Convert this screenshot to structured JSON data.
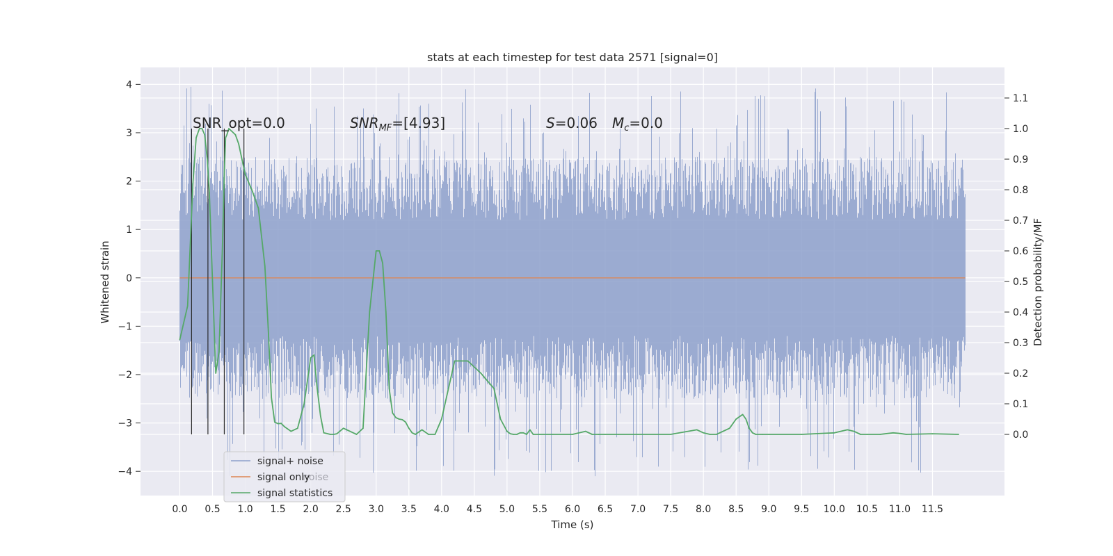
{
  "chart_data": {
    "type": "line",
    "title": "stats at each timestep for test data 2571 [signal=0]",
    "xlabel": "Time (s)",
    "ylabel_left": "Whitened strain",
    "ylabel_right": "Detection probability/MF",
    "xlim": [
      -0.6,
      12.6
    ],
    "ylim_left": [
      -4.5,
      4.35
    ],
    "ylim_right": [
      -0.2,
      1.2
    ],
    "x_ticks": [
      "0.0",
      "0.5",
      "1.0",
      "1.5",
      "2.0",
      "2.5",
      "3.0",
      "3.5",
      "4.0",
      "4.5",
      "5.0",
      "5.5",
      "6.0",
      "6.5",
      "7.0",
      "7.5",
      "8.0",
      "8.5",
      "9.0",
      "9.5",
      "10.0",
      "10.5",
      "11.0",
      "11.5"
    ],
    "y_ticks_left": [
      "4",
      "3",
      "2",
      "1",
      "0",
      "−1",
      "−2",
      "−3",
      "−4"
    ],
    "y_ticks_right": [
      "1.1",
      "1.0",
      "0.9",
      "0.8",
      "0.7",
      "0.6",
      "0.5",
      "0.4",
      "0.3",
      "0.2",
      "0.1",
      "0.0"
    ],
    "grid": true,
    "legend_position": "lower-left",
    "legend": [
      {
        "label": "signal+ noise",
        "color": "#8da0cb"
      },
      {
        "label": "signal only",
        "color": "#dd8452"
      },
      {
        "label": "signal statistics",
        "color": "#55a868"
      }
    ],
    "hidden_legend_text": "noise",
    "annotations": {
      "snr_opt": "SNR_opt=0.0",
      "snr_mf_sym": "SNR",
      "snr_mf_sub": "MF",
      "snr_mf_val": "=[4.93]",
      "s_sym": "S",
      "s_val": "=0.06",
      "mc_sym": "M",
      "mc_sub": "c",
      "mc_val": "=0.0"
    },
    "series": [
      {
        "name": "signal+ noise",
        "color": "#8da0cb",
        "axis": "left",
        "x_range": [
          0.0,
          12.0
        ],
        "typical_upper": 2.5,
        "typical_lower": -2.5,
        "max": 3.95,
        "min": -4.1
      },
      {
        "name": "signal only",
        "color": "#dd8452",
        "axis": "left",
        "x": [
          0.0,
          12.0
        ],
        "y": [
          0.0,
          0.0
        ]
      },
      {
        "name": "signal statistics",
        "color": "#55a868",
        "axis": "right",
        "x": [
          0.0,
          0.12,
          0.16,
          0.2,
          0.25,
          0.3,
          0.34,
          0.38,
          0.42,
          0.45,
          0.5,
          0.55,
          0.6,
          0.65,
          0.68,
          0.7,
          0.72,
          0.75,
          0.8,
          0.85,
          0.9,
          1.0,
          1.1,
          1.2,
          1.3,
          1.35,
          1.4,
          1.45,
          1.5,
          1.55,
          1.6,
          1.7,
          1.8,
          1.9,
          2.0,
          2.05,
          2.1,
          2.15,
          2.2,
          2.3,
          2.35,
          2.4,
          2.5,
          2.6,
          2.7,
          2.8,
          2.9,
          3.0,
          3.05,
          3.1,
          3.15,
          3.2,
          3.25,
          3.3,
          3.35,
          3.4,
          3.45,
          3.5,
          3.55,
          3.6,
          3.7,
          3.8,
          3.9,
          4.0,
          4.2,
          4.4,
          4.6,
          4.8,
          4.9,
          5.0,
          5.05,
          5.1,
          5.15,
          5.2,
          5.25,
          5.3,
          5.35,
          5.4,
          5.5,
          5.7,
          6.0,
          6.2,
          6.3,
          6.4,
          6.5,
          6.7,
          7.0,
          7.5,
          7.9,
          8.0,
          8.1,
          8.2,
          8.4,
          8.5,
          8.6,
          8.65,
          8.7,
          8.75,
          8.8,
          8.9,
          9.0,
          9.5,
          10.0,
          10.2,
          10.3,
          10.4,
          10.5,
          10.7,
          10.9,
          11.0,
          11.1,
          11.5,
          11.9
        ],
        "y": [
          0.31,
          0.42,
          0.62,
          0.82,
          0.97,
          1.0,
          1.0,
          0.98,
          0.9,
          0.8,
          0.5,
          0.2,
          0.27,
          0.6,
          0.85,
          0.97,
          0.98,
          1.0,
          0.99,
          0.98,
          0.95,
          0.85,
          0.8,
          0.74,
          0.55,
          0.35,
          0.12,
          0.04,
          0.035,
          0.036,
          0.025,
          0.01,
          0.02,
          0.1,
          0.25,
          0.26,
          0.15,
          0.06,
          0.005,
          0.0,
          0.0,
          0.002,
          0.02,
          0.01,
          0.0,
          0.02,
          0.4,
          0.6,
          0.6,
          0.56,
          0.4,
          0.15,
          0.07,
          0.055,
          0.05,
          0.048,
          0.04,
          0.02,
          0.005,
          0.0,
          0.015,
          0.0,
          0.0,
          0.05,
          0.24,
          0.24,
          0.2,
          0.15,
          0.05,
          0.01,
          0.002,
          0.0,
          0.0,
          0.005,
          0.005,
          0.0,
          0.015,
          0.0,
          0.0,
          0.0,
          0.0,
          0.01,
          0.0,
          0.0,
          0.0,
          0.0,
          0.0,
          0.0,
          0.015,
          0.005,
          0.0,
          0.0,
          0.02,
          0.05,
          0.065,
          0.05,
          0.02,
          0.005,
          0.0,
          0.0,
          0.0,
          0.0,
          0.005,
          0.015,
          0.01,
          0.0,
          0.0,
          0.0,
          0.005,
          0.003,
          0.0,
          0.002,
          0.0
        ]
      }
    ],
    "vertical_markers_x": [
      0.18,
      0.43,
      0.68,
      0.98
    ]
  }
}
